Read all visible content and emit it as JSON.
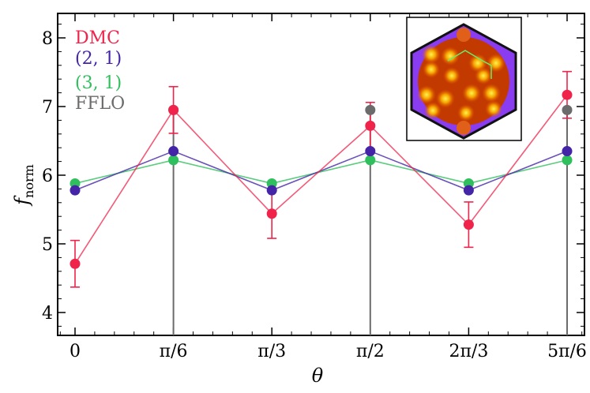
{
  "chart_data": {
    "type": "line",
    "xlabel": "θ",
    "ylabel": "f",
    "ylabel_sub": "norm",
    "categories": [
      "0",
      "π/6",
      "π/3",
      "π/2",
      "2π/3",
      "5π/6"
    ],
    "x": [
      0,
      1,
      2,
      3,
      4,
      5
    ],
    "ylim": [
      3.7,
      8.3
    ],
    "yticks": [
      4,
      5,
      6,
      7,
      8
    ],
    "legend_position": "top-left",
    "series": [
      {
        "name": "DMC",
        "color": "#f0234a",
        "values": [
          4.71,
          6.95,
          5.44,
          6.72,
          5.28,
          7.17
        ],
        "err": [
          0.34,
          0.34,
          0.36,
          0.34,
          0.33,
          0.34
        ]
      },
      {
        "name": "(2, 1)",
        "color": "#4425a8",
        "values": [
          5.78,
          6.35,
          5.78,
          6.35,
          5.78,
          6.35
        ]
      },
      {
        "name": "(3, 1)",
        "color": "#2fbf5c",
        "values": [
          5.88,
          6.22,
          5.88,
          6.22,
          5.88,
          6.22
        ]
      },
      {
        "name": "FFLO",
        "color": "#6b6b6b",
        "values": [
          null,
          6.95,
          null,
          6.95,
          null,
          6.95
        ]
      }
    ]
  }
}
